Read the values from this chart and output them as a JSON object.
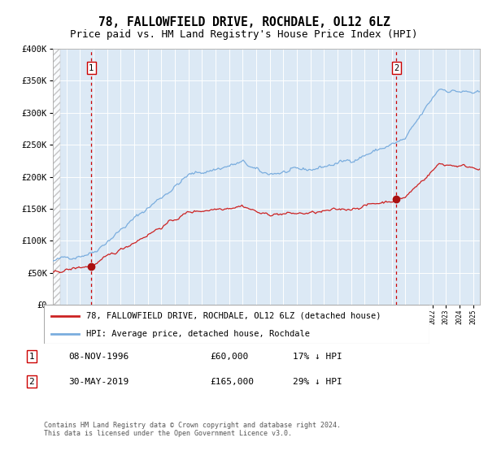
{
  "title": "78, FALLOWFIELD DRIVE, ROCHDALE, OL12 6LZ",
  "subtitle": "Price paid vs. HM Land Registry's House Price Index (HPI)",
  "legend_line1": "78, FALLOWFIELD DRIVE, ROCHDALE, OL12 6LZ (detached house)",
  "legend_line2": "HPI: Average price, detached house, Rochdale",
  "sale1_date": "08-NOV-1996",
  "sale1_price": 60000,
  "sale1_label": "17% ↓ HPI",
  "sale2_date": "30-MAY-2019",
  "sale2_price": 165000,
  "sale2_label": "29% ↓ HPI",
  "note": "Contains HM Land Registry data © Crown copyright and database right 2024.\nThis data is licensed under the Open Government Licence v3.0.",
  "ylim": [
    0,
    400000
  ],
  "hpi_color": "#7aadde",
  "price_color": "#cc2222",
  "bg_color": "#dce9f5",
  "marker_color": "#aa1111",
  "vline_color": "#cc0000",
  "grid_color": "#ffffff",
  "outer_bg": "#ffffff",
  "title_fontsize": 10.5,
  "subtitle_fontsize": 9,
  "label_box_color": "#cc0000"
}
